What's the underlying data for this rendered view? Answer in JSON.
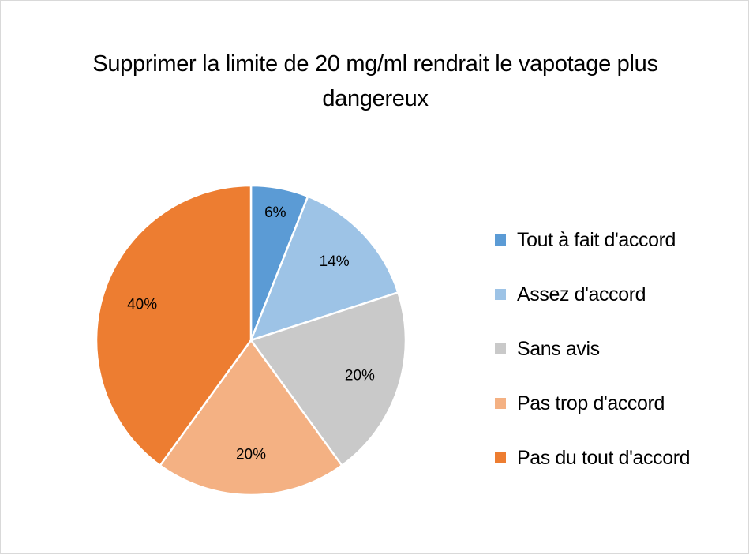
{
  "chart_data": {
    "type": "pie",
    "title": "Supprimer la limite de 20 mg/ml rendrait le vapotage plus dangereux",
    "categories": [
      "Tout à fait d'accord",
      "Assez d'accord",
      "Sans avis",
      "Pas trop d'accord",
      "Pas du tout d'accord"
    ],
    "values": [
      6,
      14,
      20,
      20,
      40
    ],
    "value_labels": [
      "6%",
      "14%",
      "20%",
      "20%",
      "40%"
    ],
    "colors": [
      "#5b9bd5",
      "#9dc3e6",
      "#c9c9c9",
      "#f4b183",
      "#ed7d31"
    ],
    "legend_position": "right"
  }
}
